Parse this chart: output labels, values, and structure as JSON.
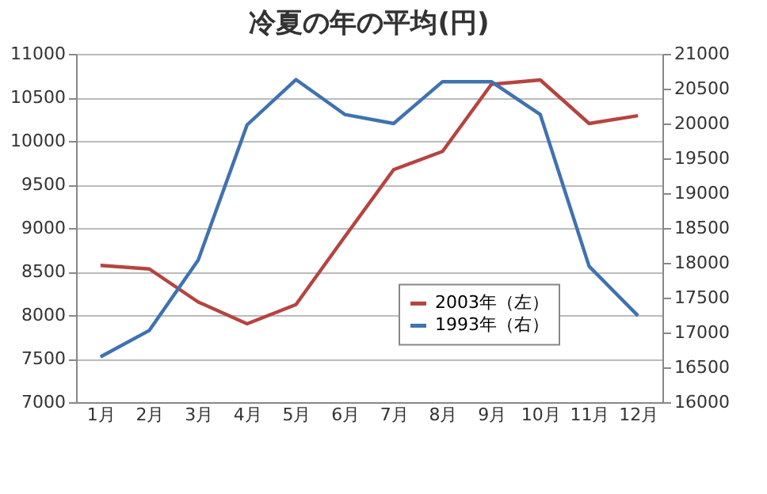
{
  "chart_data": {
    "type": "line",
    "title": "冷夏の年の平均(円)",
    "categories": [
      "1月",
      "2月",
      "3月",
      "4月",
      "5月",
      "6月",
      "7月",
      "8月",
      "9月",
      "10月",
      "11月",
      "12月"
    ],
    "series": [
      {
        "name": "2003年（左）",
        "color": "#b5443f",
        "values": [
          8570,
          8530,
          8150,
          7900,
          8120,
          8900,
          9670,
          9880,
          10650,
          10700,
          10200,
          10290
        ]
      },
      {
        "name": "1993年（右）",
        "color": "#3f72b0",
        "axis": "y2",
        "values": [
          16650,
          17030,
          18040,
          19980,
          20630,
          20130,
          20000,
          20600,
          20600,
          20130,
          17950,
          17240
        ]
      }
    ],
    "ylim": [
      7000,
      11000
    ],
    "yticks": [
      7000,
      7500,
      8000,
      8500,
      9000,
      9500,
      10000,
      10500,
      11000
    ],
    "y2lim": [
      16000,
      21000
    ],
    "y2ticks": [
      16000,
      16500,
      17000,
      17500,
      18000,
      18500,
      19000,
      19500,
      20000,
      20500,
      21000
    ],
    "grid": "y",
    "legend": "bottom right",
    "marker": "none",
    "line_style": "solid"
  }
}
